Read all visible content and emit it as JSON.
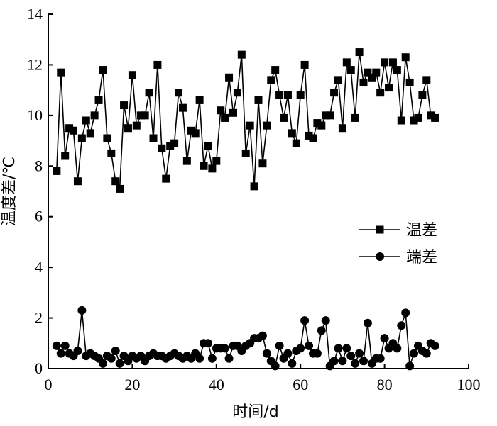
{
  "chart_data": {
    "type": "line",
    "title": "",
    "xlabel": "时间/d",
    "ylabel": "温度差/℃",
    "xlim": [
      0,
      100
    ],
    "ylim": [
      0,
      14
    ],
    "xticks": [
      "0",
      "20",
      "40",
      "60",
      "80",
      "100"
    ],
    "yticks": [
      "0",
      "2",
      "4",
      "6",
      "8",
      "10",
      "12",
      "14"
    ],
    "grid": false,
    "legend_position": "right-middle",
    "x": [
      2,
      3,
      4,
      5,
      6,
      7,
      8,
      9,
      10,
      11,
      12,
      13,
      14,
      15,
      16,
      17,
      18,
      19,
      20,
      21,
      22,
      23,
      24,
      25,
      26,
      27,
      28,
      29,
      30,
      31,
      32,
      33,
      34,
      35,
      36,
      37,
      38,
      39,
      40,
      41,
      42,
      43,
      44,
      45,
      46,
      47,
      48,
      49,
      50,
      51,
      52,
      53,
      54,
      55,
      56,
      57,
      58,
      59,
      60,
      61,
      62,
      63,
      64,
      65,
      66,
      67,
      68,
      69,
      70,
      71,
      72,
      73,
      74,
      75,
      76,
      77,
      78,
      79,
      80,
      81,
      82,
      83,
      84,
      85,
      86,
      87,
      88,
      89,
      90,
      91,
      92
    ],
    "series": [
      {
        "name": "温差",
        "marker": "square",
        "values": [
          7.8,
          11.7,
          8.4,
          9.5,
          9.4,
          7.4,
          9.1,
          9.8,
          9.3,
          10.0,
          10.6,
          11.8,
          9.1,
          8.5,
          7.4,
          7.1,
          10.4,
          9.5,
          11.6,
          9.6,
          10.0,
          10.0,
          10.9,
          9.1,
          12.0,
          8.7,
          7.5,
          8.8,
          8.9,
          10.9,
          10.3,
          8.2,
          9.4,
          9.3,
          10.6,
          8.0,
          8.8,
          7.9,
          8.2,
          10.2,
          9.9,
          11.5,
          10.1,
          10.9,
          12.4,
          8.5,
          9.6,
          7.2,
          10.6,
          8.1,
          9.6,
          11.4,
          11.8,
          10.8,
          9.9,
          10.8,
          9.3,
          8.9,
          10.8,
          12.0,
          9.2,
          9.1,
          9.7,
          9.6,
          10.0,
          10.0,
          10.9,
          11.4,
          9.5,
          12.1,
          11.8,
          9.9,
          12.5,
          11.3,
          11.7,
          11.5,
          11.7,
          10.9,
          12.1,
          11.1,
          12.1,
          11.8,
          9.8,
          12.3,
          11.3,
          9.8,
          9.9,
          10.8,
          11.4,
          10.0,
          9.9
        ]
      },
      {
        "name": "端差",
        "marker": "circle",
        "values": [
          0.9,
          0.6,
          0.9,
          0.6,
          0.5,
          0.7,
          2.3,
          0.5,
          0.6,
          0.5,
          0.4,
          0.2,
          0.5,
          0.4,
          0.7,
          0.2,
          0.5,
          0.3,
          0.5,
          0.4,
          0.5,
          0.3,
          0.5,
          0.6,
          0.5,
          0.5,
          0.4,
          0.5,
          0.6,
          0.5,
          0.4,
          0.5,
          0.4,
          0.6,
          0.4,
          1.0,
          1.0,
          0.4,
          0.8,
          0.8,
          0.8,
          0.4,
          0.9,
          0.9,
          0.7,
          0.9,
          1.0,
          1.2,
          1.2,
          1.3,
          0.6,
          0.3,
          0.1,
          0.9,
          0.4,
          0.6,
          0.2,
          0.7,
          0.8,
          1.9,
          0.9,
          0.6,
          0.6,
          1.5,
          1.9,
          0.1,
          0.3,
          0.8,
          0.3,
          0.8,
          0.5,
          0.2,
          0.6,
          0.3,
          1.8,
          0.2,
          0.4,
          0.4,
          1.2,
          0.8,
          1.0,
          0.8,
          1.7,
          2.2,
          0.1,
          0.6,
          0.9,
          0.7,
          0.6,
          1.0,
          0.9
        ]
      }
    ]
  }
}
